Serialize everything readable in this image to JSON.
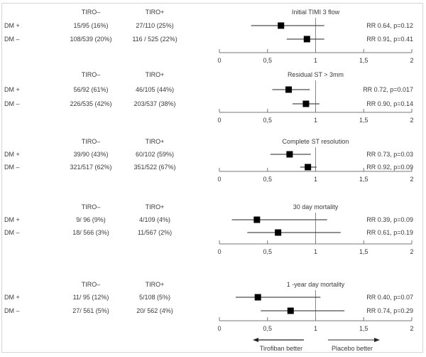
{
  "chart_data": {
    "type": "forest",
    "xlabel_left": "Tirofiban better",
    "xlabel_right": "Placebo better",
    "xlim": [
      0,
      2
    ],
    "xticks": [
      0,
      0.5,
      1,
      1.5,
      2
    ],
    "xtick_labels": [
      "0",
      "0,5",
      "1",
      "1,5",
      "2"
    ],
    "reference_line": 1,
    "column_headers": [
      "TIRO–",
      "TIRO+"
    ],
    "panels": [
      {
        "title": "Initial TIMI 3 flow",
        "rows": [
          {
            "label": "DM +",
            "tiro_minus": "15/95 (16%)",
            "tiro_plus": "27/110 (25%)",
            "rr": 0.64,
            "ci_low": 0.33,
            "ci_high": 1.09,
            "annotation": "RR 0.64, p=0.12"
          },
          {
            "label": "DM –",
            "tiro_minus": "108/539 (20%)",
            "tiro_plus": "116 / 525 (22%)",
            "rr": 0.91,
            "ci_low": 0.7,
            "ci_high": 1.09,
            "annotation": "RR 0.91, p=0.41"
          }
        ]
      },
      {
        "title": "Residual ST > 3mm",
        "rows": [
          {
            "label": "DM +",
            "tiro_minus": "56/92 (61%)",
            "tiro_plus": "46/105 (44%)",
            "rr": 0.72,
            "ci_low": 0.55,
            "ci_high": 0.94,
            "annotation": "RR 0.72, p=0.017"
          },
          {
            "label": "DM –",
            "tiro_minus": "226/535 (42%)",
            "tiro_plus": "203/537 (38%)",
            "rr": 0.9,
            "ci_low": 0.76,
            "ci_high": 1.04,
            "annotation": "RR 0.90, p=0.14"
          }
        ]
      },
      {
        "title": "Complete ST resolution",
        "rows": [
          {
            "label": "DM +",
            "tiro_minus": "39/90 (43%)",
            "tiro_plus": "60/102 (59%)",
            "rr": 0.73,
            "ci_low": 0.53,
            "ci_high": 0.95,
            "annotation": "RR 0.73, p=0.03"
          },
          {
            "label": "DM –",
            "tiro_minus": "321/517 (62%)",
            "tiro_plus": "351/522 (67%)",
            "rr": 0.92,
            "ci_low": 0.84,
            "ci_high": 1.01,
            "annotation": "RR 0.92, p=0.09"
          }
        ]
      },
      {
        "title": "30 day mortality",
        "rows": [
          {
            "label": "DM +",
            "tiro_minus": "9/ 96 (9%)",
            "tiro_plus": "4/109 (4%)",
            "rr": 0.39,
            "ci_low": 0.13,
            "ci_high": 1.12,
            "annotation": "RR 0.39, p=0.09"
          },
          {
            "label": "DM –",
            "tiro_minus": "18/ 566 (3%)",
            "tiro_plus": "11/567 (2%)",
            "rr": 0.61,
            "ci_low": 0.29,
            "ci_high": 1.26,
            "annotation": "RR 0.61, p=0.19"
          }
        ]
      },
      {
        "title": "1 -year day mortality",
        "rows": [
          {
            "label": "DM +",
            "tiro_minus": "11/ 95 (12%)",
            "tiro_plus": "5/108 (5%)",
            "rr": 0.4,
            "ci_low": 0.17,
            "ci_high": 1.05,
            "annotation": "RR 0.40, p=0.07"
          },
          {
            "label": "DM –",
            "tiro_minus": "27/ 561 (5%)",
            "tiro_plus": "20/ 562 (4%)",
            "rr": 0.74,
            "ci_low": 0.43,
            "ci_high": 1.3,
            "annotation": "RR 0.74, p=0.29"
          }
        ]
      }
    ]
  }
}
